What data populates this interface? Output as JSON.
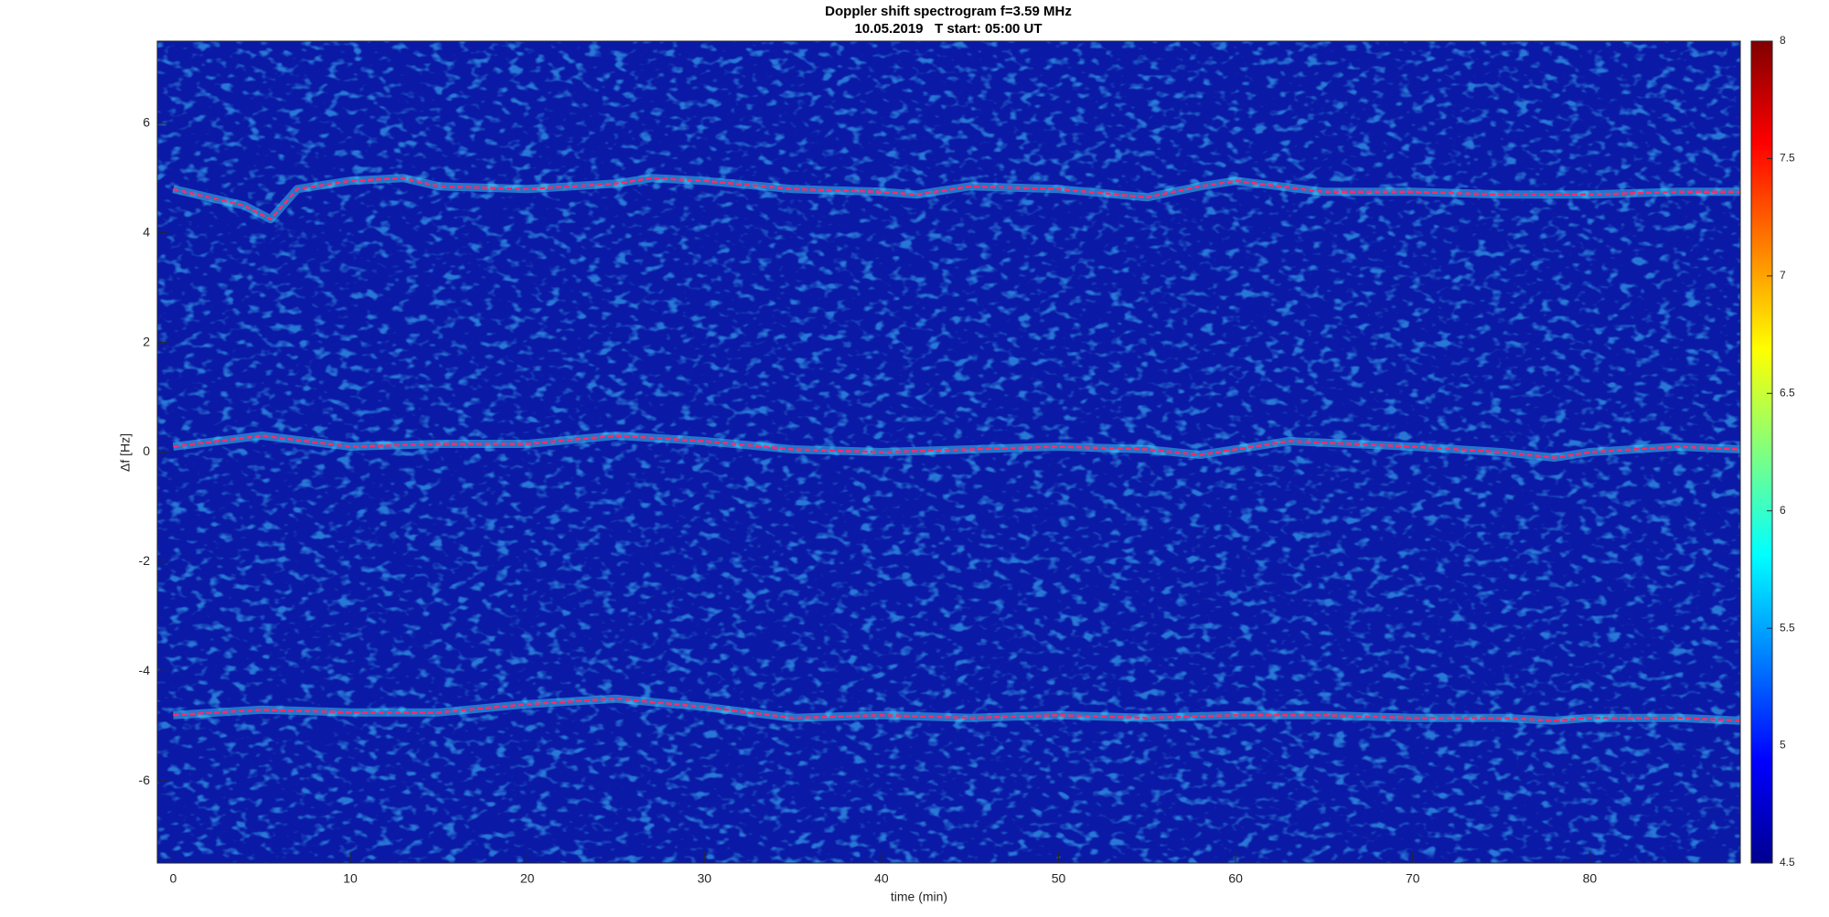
{
  "chart_data": {
    "type": "line",
    "title": "Doppler shift spectrogram f=3.59 MHz",
    "subtitle": "10.05.2019   T start: 05:00 UT",
    "x_label": "time (min)",
    "y_label": "Δf [Hz]",
    "xlim": [
      -0.9,
      88.5
    ],
    "ylim": [
      -7.5,
      7.5
    ],
    "xticks": [
      0,
      10,
      20,
      30,
      40,
      50,
      60,
      70,
      80
    ],
    "yticks": [
      -6,
      -4,
      -2,
      0,
      2,
      4,
      6
    ],
    "colorbar": {
      "lim": [
        4.5,
        8
      ],
      "ticks": [
        4.5,
        5,
        5.5,
        6,
        6.5,
        7,
        7.5,
        8
      ]
    },
    "series": [
      {
        "color": "#ff2a6a",
        "x": [
          0,
          4,
          5.5,
          7,
          10,
          13,
          15,
          20,
          25,
          27,
          30,
          35,
          40,
          42,
          45,
          50,
          55,
          58,
          60,
          65,
          70,
          75,
          80,
          85,
          88.5
        ],
        "values": [
          4.8,
          4.5,
          4.25,
          4.8,
          4.95,
          5.0,
          4.85,
          4.8,
          4.9,
          5.0,
          4.95,
          4.8,
          4.75,
          4.7,
          4.85,
          4.8,
          4.65,
          4.85,
          4.95,
          4.75,
          4.75,
          4.7,
          4.7,
          4.75,
          4.75
        ]
      },
      {
        "color": "#ff2a6a",
        "x": [
          0,
          5,
          10,
          15,
          20,
          25,
          30,
          35,
          40,
          45,
          50,
          55,
          58,
          63,
          70,
          75,
          78,
          80,
          85,
          88.5
        ],
        "values": [
          0.1,
          0.3,
          0.1,
          0.15,
          0.15,
          0.3,
          0.2,
          0.05,
          0.0,
          0.05,
          0.1,
          0.05,
          -0.05,
          0.2,
          0.1,
          0.0,
          -0.1,
          0.0,
          0.1,
          0.05
        ]
      },
      {
        "color": "#ff2a6a",
        "x": [
          0,
          5,
          10,
          15,
          20,
          25,
          30,
          35,
          40,
          45,
          50,
          55,
          60,
          65,
          70,
          75,
          78,
          80,
          85,
          88.5
        ],
        "values": [
          -4.8,
          -4.7,
          -4.75,
          -4.75,
          -4.6,
          -4.5,
          -4.65,
          -4.85,
          -4.8,
          -4.85,
          -4.8,
          -4.85,
          -4.8,
          -4.8,
          -4.85,
          -4.85,
          -4.9,
          -4.85,
          -4.85,
          -4.9
        ]
      }
    ]
  }
}
